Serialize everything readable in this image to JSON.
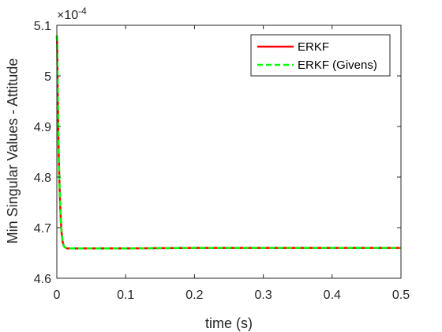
{
  "chart_data": {
    "type": "line",
    "title": "",
    "xlabel": "time (s)",
    "ylabel": "Min Singular Values - Attitude",
    "y_exponent_label": "×10",
    "y_exponent_power": "-4",
    "xlim": [
      0,
      0.5
    ],
    "ylim": [
      4.6,
      5.1
    ],
    "x_ticks": [
      0,
      0.1,
      0.2,
      0.3,
      0.4,
      0.5
    ],
    "x_tick_labels": [
      "0",
      "0.1",
      "0.2",
      "0.3",
      "0.4",
      "0.5"
    ],
    "y_ticks": [
      4.6,
      4.7,
      4.8,
      4.9,
      5.0,
      5.1
    ],
    "y_tick_labels": [
      "4.6",
      "4.7",
      "4.8",
      "4.9",
      "5",
      "5.1"
    ],
    "grid": false,
    "legend_position": "top-right",
    "series": [
      {
        "name": "ERKF",
        "color": "#ff0000",
        "dash": "solid",
        "x": [
          0,
          0.0005,
          0.001,
          0.0015,
          0.002,
          0.003,
          0.004,
          0.005,
          0.006,
          0.007,
          0.008,
          0.01,
          0.012,
          0.015,
          0.02,
          0.05,
          0.1,
          0.2,
          0.3,
          0.4,
          0.5
        ],
        "y": [
          5.08,
          5.06,
          5.0,
          4.95,
          4.9,
          4.83,
          4.78,
          4.74,
          4.71,
          4.69,
          4.675,
          4.664,
          4.661,
          4.659,
          4.659,
          4.659,
          4.659,
          4.66,
          4.66,
          4.66,
          4.66
        ]
      },
      {
        "name": "ERKF (Givens)",
        "color": "#00ff00",
        "dash": "dashed",
        "x": [
          0,
          0.0005,
          0.001,
          0.0015,
          0.002,
          0.003,
          0.004,
          0.005,
          0.006,
          0.007,
          0.008,
          0.01,
          0.012,
          0.015,
          0.02,
          0.05,
          0.1,
          0.2,
          0.3,
          0.4,
          0.5
        ],
        "y": [
          5.08,
          5.06,
          5.0,
          4.95,
          4.9,
          4.83,
          4.78,
          4.74,
          4.71,
          4.69,
          4.675,
          4.664,
          4.661,
          4.659,
          4.659,
          4.659,
          4.659,
          4.66,
          4.66,
          4.66,
          4.66
        ]
      }
    ]
  }
}
